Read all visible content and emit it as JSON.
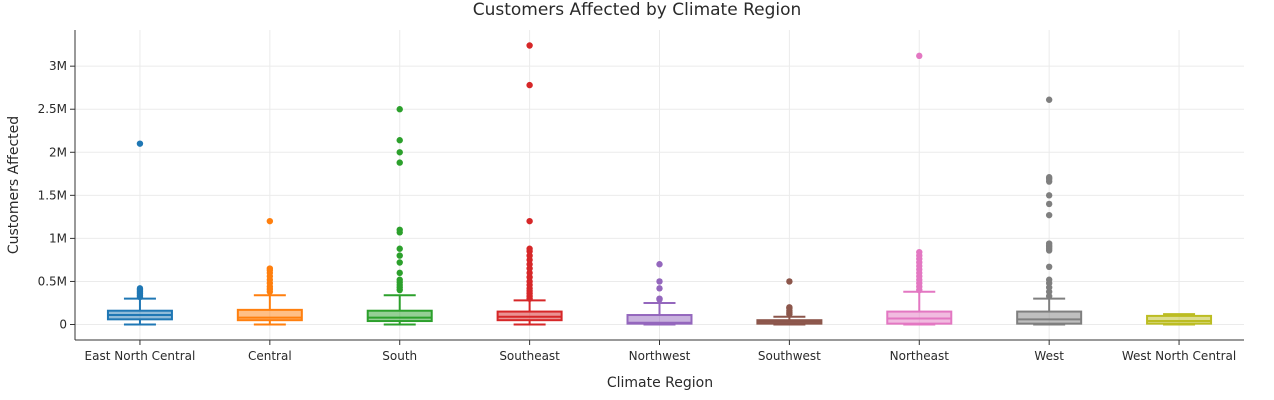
{
  "chart_data": {
    "type": "box",
    "title": "Customers Affected by Climate Region",
    "xlabel": "Climate Region",
    "ylabel": "Customers Affected",
    "ylim": [
      -180000,
      3420000
    ],
    "y_ticks": [
      {
        "value": 0,
        "label": "0"
      },
      {
        "value": 500000,
        "label": "0.5M"
      },
      {
        "value": 1000000,
        "label": "1M"
      },
      {
        "value": 1500000,
        "label": "1.5M"
      },
      {
        "value": 2000000,
        "label": "2M"
      },
      {
        "value": 2500000,
        "label": "2.5M"
      },
      {
        "value": 3000000,
        "label": "3M"
      }
    ],
    "grid": true,
    "legend": "none",
    "categories": [
      "East North Central",
      "Central",
      "South",
      "Southeast",
      "Northwest",
      "Southwest",
      "Northeast",
      "West",
      "West North Central"
    ],
    "series": [
      {
        "category": "East North Central",
        "color": "#1f77b4",
        "min": 0,
        "q1": 60000,
        "median": 110000,
        "q3": 160000,
        "max": 300000,
        "outliers": [
          320000,
          340000,
          360000,
          380000,
          400000,
          420000,
          2100000
        ]
      },
      {
        "category": "Central",
        "color": "#ff7f0e",
        "min": 0,
        "q1": 50000,
        "median": 80000,
        "q3": 170000,
        "max": 340000,
        "outliers": [
          380000,
          410000,
          440000,
          480000,
          520000,
          560000,
          600000,
          630000,
          650000,
          1200000
        ]
      },
      {
        "category": "South",
        "color": "#2ca02c",
        "min": 0,
        "q1": 40000,
        "median": 80000,
        "q3": 160000,
        "max": 340000,
        "outliers": [
          400000,
          430000,
          460000,
          490000,
          520000,
          600000,
          720000,
          800000,
          880000,
          1070000,
          1100000,
          1880000,
          2000000,
          2140000,
          2500000
        ]
      },
      {
        "category": "Southeast",
        "color": "#d62728",
        "min": 0,
        "q1": 50000,
        "median": 90000,
        "q3": 150000,
        "max": 280000,
        "outliers": [
          300000,
          330000,
          360000,
          390000,
          420000,
          460000,
          500000,
          550000,
          600000,
          650000,
          700000,
          750000,
          800000,
          850000,
          880000,
          1200000,
          2780000,
          3240000
        ]
      },
      {
        "category": "Northwest",
        "color": "#9467bd",
        "min": 0,
        "q1": 10000,
        "median": 20000,
        "q3": 110000,
        "max": 250000,
        "outliers": [
          290000,
          300000,
          420000,
          500000,
          700000
        ]
      },
      {
        "category": "Southwest",
        "color": "#8c564b",
        "min": 0,
        "q1": 10000,
        "median": 30000,
        "q3": 50000,
        "max": 90000,
        "outliers": [
          120000,
          140000,
          160000,
          190000,
          200000,
          500000
        ]
      },
      {
        "category": "Northeast",
        "color": "#e377c2",
        "min": 0,
        "q1": 10000,
        "median": 70000,
        "q3": 150000,
        "max": 380000,
        "outliers": [
          400000,
          440000,
          480000,
          520000,
          560000,
          600000,
          640000,
          680000,
          720000,
          760000,
          800000,
          840000,
          3120000
        ]
      },
      {
        "category": "West",
        "color": "#7f7f7f",
        "min": 0,
        "q1": 10000,
        "median": 60000,
        "q3": 150000,
        "max": 300000,
        "outliers": [
          330000,
          380000,
          430000,
          480000,
          520000,
          670000,
          860000,
          880000,
          900000,
          920000,
          940000,
          1270000,
          1400000,
          1500000,
          1660000,
          1690000,
          1710000,
          2610000
        ]
      },
      {
        "category": "West North Central",
        "color": "#bcbd22",
        "min": 0,
        "q1": 10000,
        "median": 40000,
        "q3": 100000,
        "max": 120000,
        "outliers": []
      }
    ]
  }
}
